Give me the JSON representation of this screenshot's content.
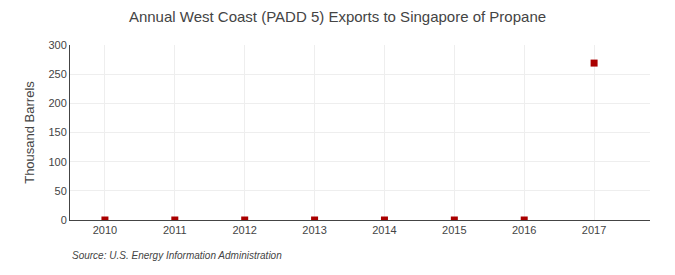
{
  "chart_data": {
    "type": "scatter",
    "title": "Annual West Coast (PADD 5) Exports to Singapore of Propane",
    "ylabel": "Thousand Barrels",
    "source": "Source: U.S. Energy Information Administration",
    "x": [
      2010,
      2011,
      2012,
      2013,
      2014,
      2015,
      2016,
      2017
    ],
    "values": [
      0,
      0,
      0,
      0,
      0,
      0,
      0,
      269
    ],
    "color": "#aa0000",
    "marker": "square",
    "xlim": [
      2009.5,
      2017.8
    ],
    "xticks": [
      2010,
      2011,
      2012,
      2013,
      2014,
      2015,
      2016,
      2017
    ],
    "ylim": [
      0,
      300
    ],
    "yticks": [
      0,
      50,
      100,
      150,
      200,
      250,
      300
    ],
    "grid": true
  }
}
